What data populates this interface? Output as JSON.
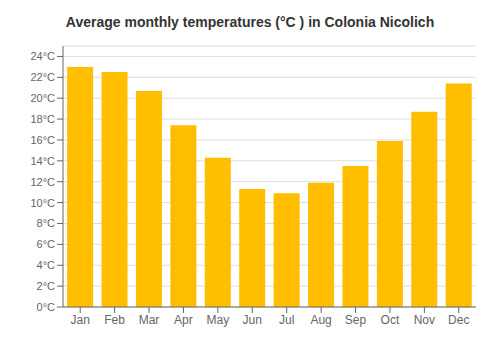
{
  "chart_data": {
    "type": "bar",
    "title": "Average monthly temperatures (°C ) in Colonia Nicolich",
    "categories": [
      "Jan",
      "Feb",
      "Mar",
      "Apr",
      "May",
      "Jun",
      "Jul",
      "Aug",
      "Sep",
      "Oct",
      "Nov",
      "Dec"
    ],
    "values": [
      23.0,
      22.5,
      20.7,
      17.4,
      14.3,
      11.3,
      10.9,
      11.9,
      13.5,
      15.9,
      18.7,
      21.4
    ],
    "color": "#FFBE00",
    "ylim": [
      0,
      25
    ],
    "yticks": [
      {
        "value": 0,
        "label": "0°C"
      },
      {
        "value": 2,
        "label": "2°C"
      },
      {
        "value": 4,
        "label": "4°C"
      },
      {
        "value": 6,
        "label": "6°C"
      },
      {
        "value": 8,
        "label": "8°C"
      },
      {
        "value": 10,
        "label": "10°C"
      },
      {
        "value": 12,
        "label": "12°C"
      },
      {
        "value": 14,
        "label": "14°C"
      },
      {
        "value": 16,
        "label": "16°C"
      },
      {
        "value": 18,
        "label": "18°C"
      },
      {
        "value": 20,
        "label": "20°C"
      },
      {
        "value": 22,
        "label": "22°C"
      },
      {
        "value": 24,
        "label": "24°C"
      }
    ],
    "grid": true
  }
}
